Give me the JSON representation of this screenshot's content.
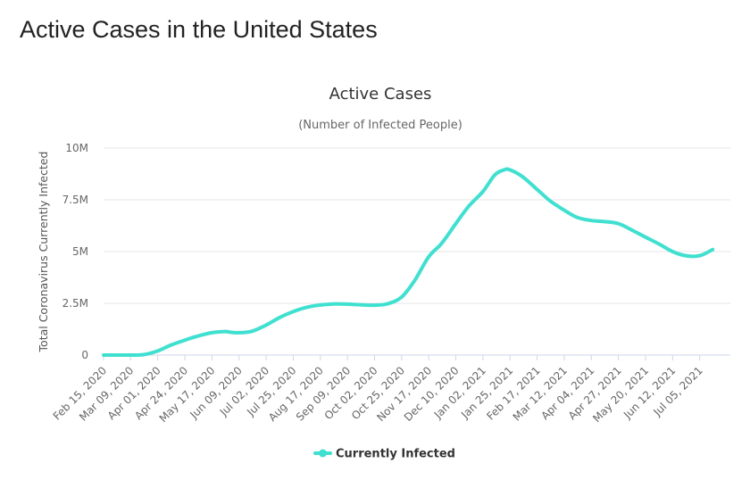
{
  "page": {
    "title": "Active Cases in the United States"
  },
  "chart_data": {
    "type": "line",
    "title": "Active Cases",
    "subtitle": "(Number of Infected People)",
    "xlabel": "",
    "ylabel": "Total Coronavirus Currently Infected",
    "ylim": [
      0,
      10000000
    ],
    "yticks": [
      {
        "value": 0,
        "label": "0"
      },
      {
        "value": 2500000,
        "label": "2.5M"
      },
      {
        "value": 5000000,
        "label": "5M"
      },
      {
        "value": 7500000,
        "label": "7.5M"
      },
      {
        "value": 10000000,
        "label": "10M"
      }
    ],
    "xlim": [
      "2020-02-15",
      "2021-07-31"
    ],
    "xticks": [
      {
        "date": "2020-02-15",
        "label": "Feb 15, 2020"
      },
      {
        "date": "2020-03-09",
        "label": "Mar 09, 2020"
      },
      {
        "date": "2020-04-01",
        "label": "Apr 01, 2020"
      },
      {
        "date": "2020-04-24",
        "label": "Apr 24, 2020"
      },
      {
        "date": "2020-05-17",
        "label": "May 17, 2020"
      },
      {
        "date": "2020-06-09",
        "label": "Jun 09, 2020"
      },
      {
        "date": "2020-07-02",
        "label": "Jul 02, 2020"
      },
      {
        "date": "2020-07-25",
        "label": "Jul 25, 2020"
      },
      {
        "date": "2020-08-17",
        "label": "Aug 17, 2020"
      },
      {
        "date": "2020-09-09",
        "label": "Sep 09, 2020"
      },
      {
        "date": "2020-10-02",
        "label": "Oct 02, 2020"
      },
      {
        "date": "2020-10-25",
        "label": "Oct 25, 2020"
      },
      {
        "date": "2020-11-17",
        "label": "Nov 17, 2020"
      },
      {
        "date": "2020-12-10",
        "label": "Dec 10, 2020"
      },
      {
        "date": "2021-01-02",
        "label": "Jan 02, 2021"
      },
      {
        "date": "2021-01-25",
        "label": "Jan 25, 2021"
      },
      {
        "date": "2021-02-17",
        "label": "Feb 17, 2021"
      },
      {
        "date": "2021-03-12",
        "label": "Mar 12, 2021"
      },
      {
        "date": "2021-04-04",
        "label": "Apr 04, 2021"
      },
      {
        "date": "2021-04-27",
        "label": "Apr 27, 2021"
      },
      {
        "date": "2021-05-20",
        "label": "May 20, 2021"
      },
      {
        "date": "2021-06-12",
        "label": "Jun 12, 2021"
      },
      {
        "date": "2021-07-05",
        "label": "Jul 05, 2021"
      }
    ],
    "legend": "bottom-center",
    "grid": true,
    "colors": {
      "series": "#40e0d0",
      "grid": "#e6e6e6",
      "axis": "#ccd6eb"
    },
    "series": [
      {
        "name": "Currently Infected",
        "points": [
          [
            "2020-02-15",
            0
          ],
          [
            "2020-03-09",
            0
          ],
          [
            "2020-03-20",
            20000
          ],
          [
            "2020-04-01",
            200000
          ],
          [
            "2020-04-12",
            480000
          ],
          [
            "2020-04-24",
            720000
          ],
          [
            "2020-05-05",
            920000
          ],
          [
            "2020-05-17",
            1080000
          ],
          [
            "2020-05-28",
            1140000
          ],
          [
            "2020-06-02",
            1100000
          ],
          [
            "2020-06-09",
            1080000
          ],
          [
            "2020-06-20",
            1150000
          ],
          [
            "2020-07-02",
            1450000
          ],
          [
            "2020-07-13",
            1800000
          ],
          [
            "2020-07-25",
            2100000
          ],
          [
            "2020-08-05",
            2300000
          ],
          [
            "2020-08-17",
            2420000
          ],
          [
            "2020-08-28",
            2470000
          ],
          [
            "2020-09-09",
            2460000
          ],
          [
            "2020-09-20",
            2430000
          ],
          [
            "2020-10-02",
            2410000
          ],
          [
            "2020-10-13",
            2480000
          ],
          [
            "2020-10-25",
            2800000
          ],
          [
            "2020-11-05",
            3600000
          ],
          [
            "2020-11-17",
            4750000
          ],
          [
            "2020-11-28",
            5400000
          ],
          [
            "2020-12-10",
            6350000
          ],
          [
            "2020-12-21",
            7200000
          ],
          [
            "2021-01-02",
            7900000
          ],
          [
            "2021-01-12",
            8700000
          ],
          [
            "2021-01-20",
            8950000
          ],
          [
            "2021-01-25",
            8950000
          ],
          [
            "2021-02-05",
            8600000
          ],
          [
            "2021-02-17",
            8000000
          ],
          [
            "2021-02-28",
            7450000
          ],
          [
            "2021-03-12",
            7000000
          ],
          [
            "2021-03-23",
            6650000
          ],
          [
            "2021-04-04",
            6500000
          ],
          [
            "2021-04-15",
            6450000
          ],
          [
            "2021-04-27",
            6350000
          ],
          [
            "2021-05-08",
            6050000
          ],
          [
            "2021-05-20",
            5700000
          ],
          [
            "2021-06-01",
            5350000
          ],
          [
            "2021-06-12",
            5000000
          ],
          [
            "2021-06-23",
            4800000
          ],
          [
            "2021-07-05",
            4800000
          ],
          [
            "2021-07-16",
            5100000
          ]
        ]
      }
    ]
  }
}
